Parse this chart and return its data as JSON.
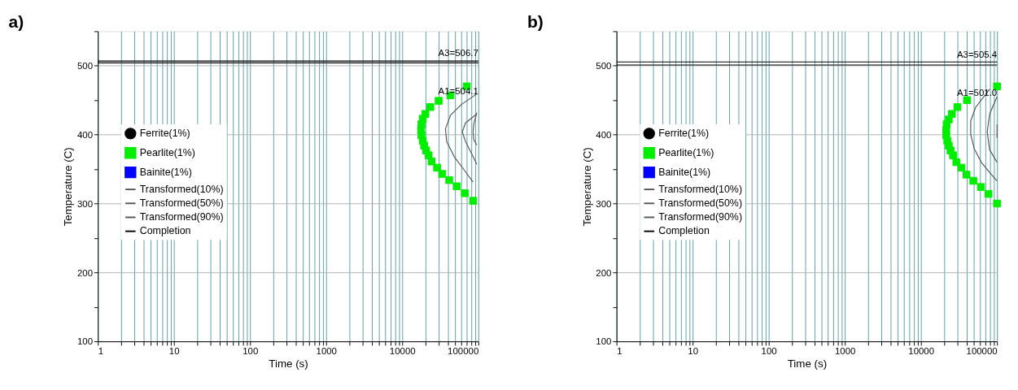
{
  "chart_data": [
    {
      "type": "scatter",
      "title": "a)",
      "xlabel": "Time (s)",
      "ylabel": "Temperature (C)",
      "log": "x",
      "grid": true,
      "legend": "left",
      "xlim": [
        1,
        100000
      ],
      "ylim": [
        100,
        550
      ],
      "xticks": [
        1,
        {
          "value": 2,
          "label": null
        },
        {
          "value": 3,
          "label": null
        },
        {
          "value": 4,
          "label": null
        },
        {
          "value": 5,
          "label": null
        },
        {
          "value": 6,
          "label": null
        },
        {
          "value": 7,
          "label": null
        },
        {
          "value": 8,
          "label": null
        },
        {
          "value": 9,
          "label": null
        },
        10,
        {
          "value": 20,
          "label": null
        },
        {
          "value": 30,
          "label": null
        },
        {
          "value": 40,
          "label": null
        },
        {
          "value": 50,
          "label": null
        },
        {
          "value": 60,
          "label": null
        },
        {
          "value": 70,
          "label": null
        },
        {
          "value": 80,
          "label": null
        },
        {
          "value": 90,
          "label": null
        },
        100,
        {
          "value": 200,
          "label": null
        },
        {
          "value": 300,
          "label": null
        },
        {
          "value": 400,
          "label": null
        },
        {
          "value": 500,
          "label": null
        },
        {
          "value": 600,
          "label": null
        },
        {
          "value": 700,
          "label": null
        },
        {
          "value": 800,
          "label": null
        },
        {
          "value": 900,
          "label": null
        },
        1000,
        {
          "value": 2000,
          "label": null
        },
        {
          "value": 3000,
          "label": null
        },
        {
          "value": 4000,
          "label": null
        },
        {
          "value": 5000,
          "label": null
        },
        {
          "value": 6000,
          "label": null
        },
        {
          "value": 7000,
          "label": null
        },
        {
          "value": 8000,
          "label": null
        },
        {
          "value": 9000,
          "label": null
        },
        10000,
        {
          "value": 20000,
          "label": null
        },
        {
          "value": 30000,
          "label": null
        },
        {
          "value": 40000,
          "label": null
        },
        {
          "value": 50000,
          "label": null
        },
        {
          "value": 60000,
          "label": null
        },
        {
          "value": 70000,
          "label": null
        },
        {
          "value": 80000,
          "label": null
        },
        {
          "value": 90000,
          "label": null
        },
        100000
      ],
      "yticks": [
        100,
        {
          "value": 150,
          "label": null
        },
        200,
        {
          "value": 250,
          "label": null
        },
        300,
        {
          "value": 350,
          "label": null
        },
        400,
        {
          "value": 450,
          "label": null
        },
        500,
        {
          "value": 550,
          "label": null
        }
      ],
      "ref_lines": [
        {
          "axis": "y",
          "value": 506.7,
          "label": "A3=506.7",
          "color": "#000000"
        },
        {
          "axis": "y",
          "value": 504.1,
          "label": "A1=504.1",
          "color": "#000000"
        }
      ],
      "series": [
        {
          "name": "Ferrite(1%)",
          "type": "scatter",
          "marker": "circle",
          "color": "#000000"
        },
        {
          "name": "Pearlite(1%)",
          "type": "scatter",
          "marker": "square",
          "color": "#00ee00",
          "x": [
            70500,
            43000,
            30100,
            23400,
            20100,
            18600,
            17900,
            17700,
            17900,
            18600,
            19400,
            20600,
            22200,
            24300,
            28700,
            33500,
            41400,
            52000,
            66400,
            85300
          ],
          "values": [
            470,
            457,
            449,
            440,
            430,
            423,
            415,
            407,
            399,
            391,
            384,
            377,
            370,
            361,
            352,
            343,
            334,
            325,
            315,
            304
          ]
        },
        {
          "name": "Bainite(1%)",
          "type": "scatter",
          "marker": "square",
          "color": "#0000ff"
        },
        {
          "name": "Transformed(10%)",
          "type": "line",
          "marker": "none",
          "color": "#555555",
          "x": [
            95500,
            60300,
            43000,
            36900,
            38400,
            48200,
            67900,
            85300
          ],
          "values": [
            459,
            444,
            428,
            408,
            390,
            368,
            346,
            331
          ]
        },
        {
          "name": "Transformed(50%)",
          "type": "line",
          "marker": "none",
          "color": "#555555",
          "x": [
            95500,
            67900,
            61500,
            67900,
            85300,
            95500
          ],
          "values": [
            430,
            417,
            404,
            390,
            368,
            357
          ]
        },
        {
          "name": "Transformed(90%)",
          "type": "line",
          "marker": "none",
          "color": "#555555",
          "x": [
            95500,
            87000,
            85300,
            87000,
            95500
          ],
          "values": [
            432,
            415,
            404,
            393,
            385
          ]
        },
        {
          "name": "Completion",
          "type": "line",
          "marker": "none",
          "color": "#000000"
        }
      ]
    },
    {
      "type": "scatter",
      "title": "b)",
      "xlabel": "Time (s)",
      "ylabel": "Temperature (C)",
      "log": "x",
      "grid": true,
      "legend": "left",
      "xlim": [
        1,
        100000
      ],
      "ylim": [
        100,
        550
      ],
      "xticks": [
        1,
        {
          "value": 2,
          "label": null
        },
        {
          "value": 3,
          "label": null
        },
        {
          "value": 4,
          "label": null
        },
        {
          "value": 5,
          "label": null
        },
        {
          "value": 6,
          "label": null
        },
        {
          "value": 7,
          "label": null
        },
        {
          "value": 8,
          "label": null
        },
        {
          "value": 9,
          "label": null
        },
        10,
        {
          "value": 20,
          "label": null
        },
        {
          "value": 30,
          "label": null
        },
        {
          "value": 40,
          "label": null
        },
        {
          "value": 50,
          "label": null
        },
        {
          "value": 60,
          "label": null
        },
        {
          "value": 70,
          "label": null
        },
        {
          "value": 80,
          "label": null
        },
        {
          "value": 90,
          "label": null
        },
        100,
        {
          "value": 200,
          "label": null
        },
        {
          "value": 300,
          "label": null
        },
        {
          "value": 400,
          "label": null
        },
        {
          "value": 500,
          "label": null
        },
        {
          "value": 600,
          "label": null
        },
        {
          "value": 700,
          "label": null
        },
        {
          "value": 800,
          "label": null
        },
        {
          "value": 900,
          "label": null
        },
        1000,
        {
          "value": 2000,
          "label": null
        },
        {
          "value": 3000,
          "label": null
        },
        {
          "value": 4000,
          "label": null
        },
        {
          "value": 5000,
          "label": null
        },
        {
          "value": 6000,
          "label": null
        },
        {
          "value": 7000,
          "label": null
        },
        {
          "value": 8000,
          "label": null
        },
        {
          "value": 9000,
          "label": null
        },
        10000,
        {
          "value": 20000,
          "label": null
        },
        {
          "value": 30000,
          "label": null
        },
        {
          "value": 40000,
          "label": null
        },
        {
          "value": 50000,
          "label": null
        },
        {
          "value": 60000,
          "label": null
        },
        {
          "value": 70000,
          "label": null
        },
        {
          "value": 80000,
          "label": null
        },
        {
          "value": 90000,
          "label": null
        },
        100000
      ],
      "yticks": [
        100,
        {
          "value": 150,
          "label": null
        },
        200,
        {
          "value": 250,
          "label": null
        },
        300,
        {
          "value": 350,
          "label": null
        },
        400,
        {
          "value": 450,
          "label": null
        },
        500,
        {
          "value": 550,
          "label": null
        }
      ],
      "ref_lines": [
        {
          "axis": "y",
          "value": 505.4,
          "label": "A3=505.4",
          "color": "#000000"
        },
        {
          "axis": "y",
          "value": 501.0,
          "label": "A1=501.0",
          "color": "#000000"
        }
      ],
      "series": [
        {
          "name": "Ferrite(1%)",
          "type": "scatter",
          "marker": "circle",
          "color": "#000000"
        },
        {
          "name": "Pearlite(1%)",
          "type": "scatter",
          "marker": "square",
          "color": "#00ee00",
          "x": [
            100000,
            40300,
            30100,
            25500,
            23200,
            21800,
            21500,
            21500,
            22200,
            23200,
            24500,
            26400,
            29200,
            34000,
            39700,
            48800,
            61400,
            77100,
            100000
          ],
          "values": [
            470,
            450,
            440,
            430,
            422,
            415,
            407,
            399,
            391,
            384,
            377,
            370,
            360,
            352,
            342,
            333,
            324,
            314,
            300
          ]
        },
        {
          "name": "Bainite(1%)",
          "type": "scatter",
          "marker": "square",
          "color": "#0000ff"
        },
        {
          "name": "Transformed(10%)",
          "type": "line",
          "marker": "none",
          "color": "#555555",
          "x": [
            80000,
            52600,
            45100,
            45100,
            50000,
            62000,
            80000,
            100000
          ],
          "values": [
            466,
            440,
            420,
            400,
            380,
            360,
            345,
            333
          ]
        },
        {
          "name": "Transformed(50%)",
          "type": "line",
          "marker": "none",
          "color": "#555555",
          "x": [
            100000,
            80000,
            74300,
            80000,
            100000
          ],
          "values": [
            455,
            430,
            404,
            378,
            360
          ]
        },
        {
          "name": "Transformed(90%)",
          "type": "line",
          "marker": "none",
          "color": "#555555",
          "x": [
            100000,
            100000
          ],
          "values": [
            415,
            395
          ]
        },
        {
          "name": "Completion",
          "type": "line",
          "marker": "none",
          "color": "#000000"
        }
      ]
    }
  ]
}
